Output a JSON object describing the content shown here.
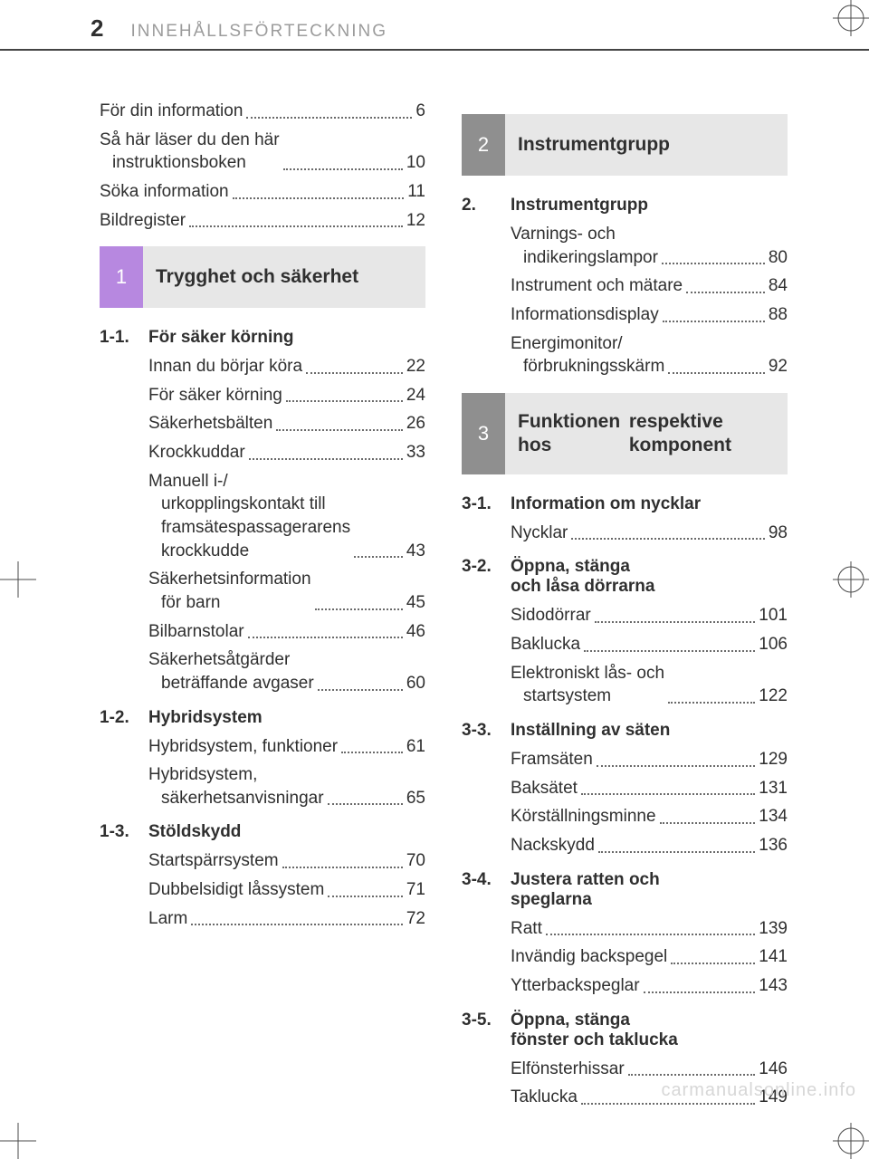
{
  "header": {
    "page_number": "2",
    "title": "INNEHÅLLSFÖRTECKNING"
  },
  "intro_entries": [
    {
      "label": "För din information",
      "page": "6"
    },
    {
      "label_lines": [
        "Så här läser du den här",
        "instruktionsboken"
      ],
      "page": "10"
    },
    {
      "label": "Söka information",
      "page": "11"
    },
    {
      "label": "Bildregister",
      "page": "12"
    }
  ],
  "sections": [
    {
      "number": "1",
      "num_color": "#b788e0",
      "title": "Trygghet och säkerhet",
      "groups": [
        {
          "heading_num": "1-1.",
          "heading": "För säker körning",
          "entries": [
            {
              "label": "Innan du börjar köra",
              "page": "22"
            },
            {
              "label": "För säker körning",
              "page": "24"
            },
            {
              "label": "Säkerhetsbälten",
              "page": "26"
            },
            {
              "label": "Krockkuddar",
              "page": "33"
            },
            {
              "label_lines": [
                "Manuell i-/",
                "urkopplingskontakt till",
                "framsätespassagerarens",
                "krockkudde"
              ],
              "page": "43"
            },
            {
              "label_lines": [
                "Säkerhetsinformation",
                "för barn"
              ],
              "page": "45"
            },
            {
              "label": "Bilbarnstolar",
              "page": "46"
            },
            {
              "label_lines": [
                "Säkerhetsåtgärder",
                "beträffande avgaser"
              ],
              "page": "60"
            }
          ]
        },
        {
          "heading_num": "1-2.",
          "heading": "Hybridsystem",
          "entries": [
            {
              "label": "Hybridsystem, funktioner",
              "page": "61"
            },
            {
              "label_lines": [
                "Hybridsystem,",
                "säkerhetsanvisningar"
              ],
              "page": "65"
            }
          ]
        },
        {
          "heading_num": "1-3.",
          "heading": "Stöldskydd",
          "entries": [
            {
              "label": "Startspärrsystem",
              "page": "70"
            },
            {
              "label": "Dubbelsidigt låssystem",
              "page": "71"
            },
            {
              "label": "Larm",
              "page": "72"
            }
          ]
        }
      ]
    },
    {
      "number": "2",
      "num_color": "#8f8f8f",
      "title": "Instrumentgrupp",
      "groups": [
        {
          "heading_num": "2.",
          "heading": "Instrumentgrupp",
          "entries": [
            {
              "label_lines": [
                "Varnings- och",
                "indikeringslampor"
              ],
              "page": "80"
            },
            {
              "label": "Instrument och mätare",
              "page": "84"
            },
            {
              "label": "Informationsdisplay",
              "page": "88"
            },
            {
              "label_lines": [
                "Energimonitor/",
                "förbrukningsskärm"
              ],
              "page": "92"
            }
          ]
        }
      ]
    },
    {
      "number": "3",
      "num_color": "#8f8f8f",
      "title_lines": [
        "Funktionen hos",
        "respektive komponent"
      ],
      "groups": [
        {
          "heading_num": "3-1.",
          "heading": "Information om nycklar",
          "entries": [
            {
              "label": "Nycklar",
              "page": "98"
            }
          ]
        },
        {
          "heading_num": "3-2.",
          "heading_lines": [
            "Öppna, stänga",
            "och låsa dörrarna"
          ],
          "entries": [
            {
              "label": "Sidodörrar",
              "page": "101"
            },
            {
              "label": "Baklucka",
              "page": "106"
            },
            {
              "label_lines": [
                "Elektroniskt lås- och",
                "startsystem"
              ],
              "page": "122"
            }
          ]
        },
        {
          "heading_num": "3-3.",
          "heading": "Inställning av säten",
          "entries": [
            {
              "label": "Framsäten",
              "page": "129"
            },
            {
              "label": "Baksätet",
              "page": "131"
            },
            {
              "label": "Körställningsminne",
              "page": "134"
            },
            {
              "label": "Nackskydd",
              "page": "136"
            }
          ]
        },
        {
          "heading_num": "3-4.",
          "heading_lines": [
            "Justera ratten och",
            "speglarna"
          ],
          "entries": [
            {
              "label": "Ratt",
              "page": "139"
            },
            {
              "label": "Invändig backspegel",
              "page": "141"
            },
            {
              "label": "Ytterbackspeglar",
              "page": "143"
            }
          ]
        },
        {
          "heading_num": "3-5.",
          "heading_lines": [
            "Öppna, stänga",
            "fönster och taklucka"
          ],
          "entries": [
            {
              "label": "Elfönsterhissar",
              "page": "146"
            },
            {
              "label": "Taklucka",
              "page": "149"
            }
          ]
        }
      ]
    }
  ],
  "watermark": "carmanualsonline.info",
  "colors": {
    "text": "#2f2f2f",
    "muted": "#9c9c9c",
    "rule": "#444444",
    "section_bg": "#e7e7e7",
    "accent_purple": "#b788e0",
    "accent_grey": "#8f8f8f",
    "watermark": "#d7d7d7"
  }
}
